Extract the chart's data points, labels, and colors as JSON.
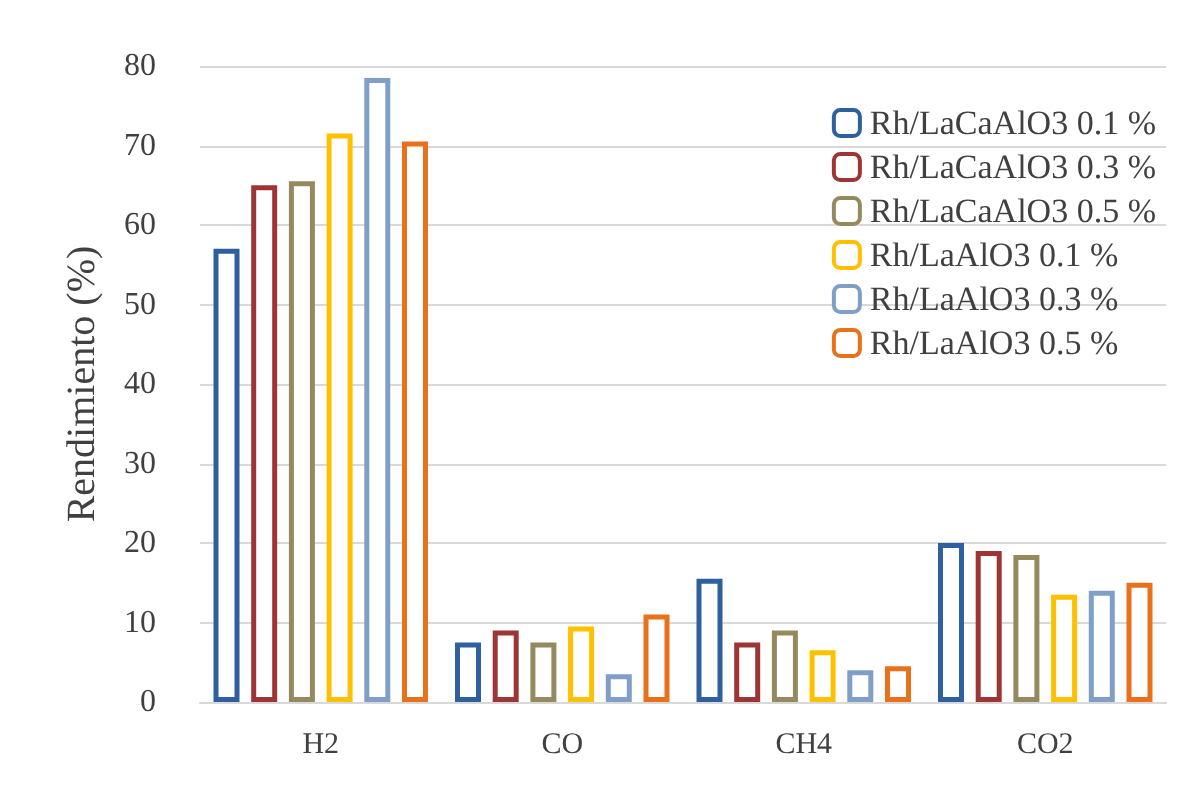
{
  "chart_data": {
    "type": "bar",
    "ylabel": "Rendimiento (%)",
    "categories": [
      "H2",
      "CO",
      "CH4",
      "CO2"
    ],
    "series": [
      {
        "name": "Rh/LaCaAlO3 0.1 %",
        "color": "#2e5f9e",
        "values": [
          57,
          7.5,
          15.5,
          20
        ]
      },
      {
        "name": "Rh/LaCaAlO3 0.3 %",
        "color": "#9e3535",
        "values": [
          65,
          9,
          7.5,
          19
        ]
      },
      {
        "name": "Rh/LaCaAlO3 0.5 %",
        "color": "#948a5e",
        "values": [
          65.5,
          7.5,
          9,
          18.5
        ]
      },
      {
        "name": "Rh/LaAlO3 0.1 %",
        "color": "#ffc000",
        "values": [
          71.5,
          9.5,
          6.5,
          13.5
        ]
      },
      {
        "name": "Rh/LaAlO3 0.3 %",
        "color": "#7f9fc9",
        "values": [
          78.5,
          3.5,
          4,
          14
        ]
      },
      {
        "name": "Rh/LaAlO3 0.5 %",
        "color": "#e9711c",
        "values": [
          70.5,
          11,
          4.5,
          15
        ]
      }
    ],
    "ylim": [
      0,
      80
    ],
    "yticks": [
      0,
      10,
      20,
      30,
      40,
      50,
      60,
      70,
      80
    ],
    "grid": "y",
    "legend": "top right"
  }
}
